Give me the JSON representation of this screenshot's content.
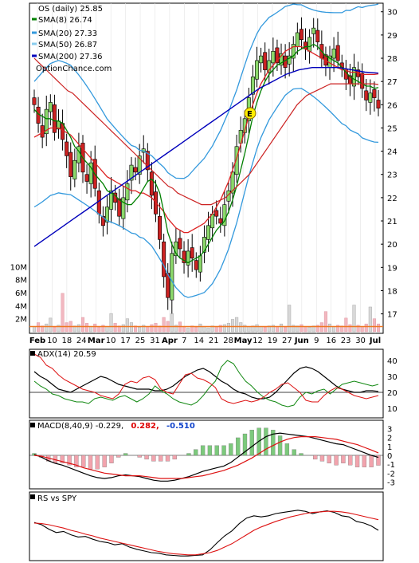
{
  "title": "OS (daily) 25.85",
  "watermark": "OptionChance.com",
  "legend": [
    {
      "label": "SMA(8) 26.74",
      "color": "#008000",
      "style": "ohlc"
    },
    {
      "label": "SMA(20) 27.33",
      "color": "#3399dd"
    },
    {
      "label": "SMA(50) 26.87",
      "color": "#88ccee"
    },
    {
      "label": "SMA(200) 27.36",
      "color": "#0000bb"
    }
  ],
  "price_axis": [
    "30",
    "29",
    "28",
    "27",
    "26",
    "25",
    "24",
    "23",
    "22",
    "21",
    "20",
    "19",
    "18",
    "17"
  ],
  "volume_axis": [
    "10M",
    "8M",
    "6M",
    "4M",
    "2M"
  ],
  "x_ticks": [
    "Feb",
    "10",
    "18",
    "24",
    "Mar",
    "10",
    "17",
    "25",
    "31",
    "Apr",
    "7",
    "14",
    "21",
    "28",
    "May",
    "12",
    "19",
    "27",
    "Jun",
    "9",
    "16",
    "23",
    "30",
    "Jul"
  ],
  "x_ticks_bold": [
    "Feb",
    "Mar",
    "Apr",
    "May",
    "Jun",
    "Jul"
  ],
  "earnings_marker": "E",
  "adx": {
    "label": "ADX(14) 20.59",
    "axis": [
      "40",
      "30",
      "20",
      "10"
    ]
  },
  "macd": {
    "label": "MACD(8,40,9) -0.229,",
    "value1": "0.282,",
    "value2": "-0.510",
    "axis": [
      "3",
      "2",
      "1",
      "0",
      "-1",
      "-2",
      "-3"
    ]
  },
  "rs": {
    "label": "RS vs SPY"
  },
  "chart_data": [
    {
      "type": "candlestick",
      "title": "OS (daily) 25.85",
      "series": [
        {
          "name": "SMA(8) 26.74"
        },
        {
          "name": "SMA(20) 27.33"
        },
        {
          "name": "SMA(50) 26.87"
        },
        {
          "name": "SMA(200) 27.36"
        }
      ],
      "ylim": [
        16.3,
        30.3
      ],
      "close": [
        26.0,
        25.2,
        24.6,
        25.8,
        26.1,
        24.8,
        25.3,
        24.5,
        23.8,
        22.9,
        23.6,
        24.2,
        23.1,
        22.7,
        23.5,
        22.4,
        21.3,
        20.8,
        21.6,
        22.3,
        21.8,
        21.2,
        22.0,
        22.6,
        23.4,
        23.1,
        23.8,
        24.1,
        23.2,
        22.1,
        21.3,
        20.2,
        18.6,
        17.7,
        19.6,
        20.1,
        19.8,
        19.2,
        19.7,
        19.4,
        18.9,
        19.5,
        20.3,
        20.8,
        21.3,
        21.2,
        20.9,
        21.7,
        22.3,
        23.1,
        24.2,
        24.9,
        25.4,
        26.3,
        27.2,
        27.9,
        28.1,
        27.5,
        27.9,
        28.3,
        27.8,
        28.2,
        27.6,
        28.1,
        28.6,
        29.1,
        28.8,
        28.4,
        28.9,
        29.3,
        28.7,
        28.0,
        27.7,
        28.1,
        28.4,
        27.9,
        27.6,
        27.1,
        26.9,
        27.6,
        27.2,
        26.7,
        26.2,
        26.5,
        26.3,
        25.85
      ],
      "sma8": [
        25.8,
        25.6,
        25.5,
        25.4,
        25.4,
        25.3,
        25.3,
        25.2,
        24.9,
        24.6,
        24.2,
        24.0,
        23.7,
        23.5,
        23.3,
        23.0,
        22.8,
        22.6,
        22.3,
        22.2,
        22.1,
        21.9,
        21.8,
        21.7,
        21.7,
        21.9,
        22.1,
        22.4,
        22.7,
        22.8,
        22.6,
        22.2,
        21.4,
        20.5,
        20.0,
        19.6,
        19.4,
        19.3,
        19.2,
        19.3,
        19.4,
        19.5,
        19.7,
        20.0,
        20.3,
        20.6,
        20.8,
        21.0,
        21.4,
        21.9,
        22.5,
        23.2,
        23.9,
        24.7,
        25.5,
        26.1,
        26.6,
        27.0,
        27.3,
        27.5,
        27.7,
        27.8,
        27.9,
        28.0,
        28.1,
        28.3,
        28.4,
        28.5,
        28.5,
        28.6,
        28.5,
        28.3,
        28.1,
        28.0,
        27.9,
        27.8,
        27.6,
        27.4,
        27.2,
        27.1,
        27.0,
        26.9,
        26.8,
        26.8,
        26.7,
        26.74
      ],
      "sma20": [
        24.6,
        24.7,
        24.8,
        24.9,
        25.0,
        25.0,
        25.0,
        24.9,
        24.8,
        24.7,
        24.5,
        24.3,
        24.1,
        23.9,
        23.7,
        23.5,
        23.3,
        23.1,
        22.9,
        22.8,
        22.7,
        22.6,
        22.5,
        22.4,
        22.3,
        22.3,
        22.2,
        22.2,
        22.1,
        22.0,
        21.8,
        21.6,
        21.4,
        21.1,
        20.9,
        20.7,
        20.6,
        20.5,
        20.5,
        20.6,
        20.7,
        20.8,
        20.9,
        21.1,
        21.3,
        21.6,
        21.9,
        22.3,
        22.7,
        23.2,
        23.7,
        24.3,
        24.9,
        25.5,
        26.0,
        26.5,
        26.9,
        27.2,
        27.5,
        27.7,
        27.9,
        28.1,
        28.3,
        28.4,
        28.5,
        28.5,
        28.5,
        28.4,
        28.3,
        28.2,
        28.1,
        28.0,
        27.9,
        27.8,
        27.7,
        27.6,
        27.5,
        27.5,
        27.4,
        27.4,
        27.4,
        27.3,
        27.3,
        27.3,
        27.3,
        27.33
      ],
      "sma50": [
        28.0,
        27.8,
        27.6,
        27.4,
        27.2,
        27.0,
        26.8,
        26.6,
        26.5,
        26.3,
        26.1,
        25.9,
        25.7,
        25.5,
        25.3,
        25.1,
        24.9,
        24.7,
        24.5,
        24.3,
        24.1,
        23.9,
        23.7,
        23.5,
        23.3,
        23.1,
        22.9,
        22.7,
        22.5,
        22.4,
        22.2,
        22.1,
        22.0,
        21.9,
        21.8,
        21.7,
        21.7,
        21.7,
        21.8,
        21.9,
        22.0,
        22.2,
        22.4,
        22.6,
        22.8,
        23.0,
        23.3,
        23.6,
        23.9,
        24.2,
        24.5,
        24.8,
        25.1,
        25.4,
        25.7,
        26.0,
        26.2,
        26.4,
        26.5,
        26.6,
        26.7,
        26.8,
        26.9,
        26.9,
        26.9,
        26.9,
        26.9,
        26.9,
        26.9,
        26.9,
        26.9,
        26.9,
        26.87
      ],
      "sma200": [
        19.9,
        20.3,
        20.7,
        21.1,
        21.5,
        21.9,
        22.3,
        22.7,
        23.1,
        23.5,
        23.9,
        24.3,
        24.7,
        25.1,
        25.5,
        25.9,
        26.3,
        26.7,
        27.0,
        27.3,
        27.5,
        27.6,
        27.6,
        27.6,
        27.5,
        27.4,
        27.36
      ],
      "volume_M": [
        0.8,
        1.4,
        0.9,
        1.2,
        2.1,
        0.7,
        1.0,
        5.9,
        1.4,
        1.6,
        0.9,
        1.1,
        2.2,
        1.3,
        0.8,
        1.2,
        0.7,
        1.0,
        0.8,
        2.8,
        1.3,
        0.9,
        1.1,
        2.0,
        1.4,
        0.9,
        0.7,
        1.0,
        0.8,
        1.1,
        1.3,
        0.9,
        2.2,
        1.6,
        2.8,
        1.0,
        1.5,
        0.8,
        0.6,
        0.9,
        0.7,
        1.2,
        0.8,
        0.6,
        0.9,
        0.8,
        1.0,
        1.1,
        1.3,
        1.9,
        2.2,
        1.4,
        1.0,
        0.8,
        0.9,
        1.1,
        0.8,
        0.7,
        0.9,
        1.0,
        0.8,
        1.2,
        0.7,
        4.1,
        1.0,
        0.9,
        1.1,
        0.8,
        0.7,
        0.9,
        1.0,
        1.4,
        3.1,
        1.2,
        0.8,
        1.0,
        0.9,
        2.1,
        1.1,
        4.1,
        1.0,
        0.8,
        1.2,
        3.8,
        2.0,
        1.2
      ],
      "volume_sma_M": 0.8,
      "volume_ylim": [
        0,
        12
      ]
    },
    {
      "type": "line",
      "title": "ADX(14) 20.59",
      "ylim": [
        5,
        45
      ],
      "adx": [
        33,
        30,
        28,
        25,
        22,
        21,
        20,
        22,
        24,
        26,
        28,
        30,
        29,
        27,
        25,
        24,
        23,
        22,
        22,
        22,
        21,
        21,
        22,
        24,
        27,
        30,
        32,
        34,
        35,
        33,
        30,
        27,
        25,
        22,
        20,
        19,
        17,
        16,
        16,
        17,
        20,
        24,
        28,
        32,
        35,
        36,
        35,
        33,
        30,
        27,
        24,
        22,
        21,
        20,
        20,
        21,
        21,
        20.59
      ],
      "di_plus": [
        27,
        24,
        22,
        19,
        18,
        16,
        15,
        14,
        14,
        13,
        16,
        17,
        16,
        15,
        17,
        18,
        16,
        14,
        16,
        19,
        24,
        21,
        19,
        16,
        14,
        13,
        12,
        14,
        18,
        23,
        27,
        36,
        40,
        38,
        32,
        27,
        24,
        20,
        17,
        15,
        14,
        12,
        11,
        12,
        17,
        20,
        19,
        21,
        22,
        19,
        22,
        25,
        26,
        27,
        26,
        25,
        24,
        25
      ],
      "di_minus": [
        44,
        42,
        37,
        35,
        31,
        28,
        26,
        24,
        22,
        21,
        20,
        18,
        17,
        16,
        19,
        25,
        27,
        26,
        29,
        30,
        28,
        22,
        20,
        19,
        25,
        31,
        32,
        29,
        28,
        26,
        23,
        16,
        14,
        13,
        14,
        15,
        14,
        15,
        17,
        20,
        22,
        25,
        26,
        23,
        20,
        15,
        14,
        14,
        18,
        21,
        23,
        22,
        20,
        18,
        17,
        16,
        17,
        18
      ]
    },
    {
      "type": "line",
      "title": "MACD(8,40,9) -0.229, 0.282, -0.510",
      "ylim": [
        -3.5,
        3.5
      ],
      "macd": [
        0.1,
        -0.2,
        -0.6,
        -0.9,
        -1.1,
        -1.4,
        -1.7,
        -2.0,
        -2.3,
        -2.5,
        -2.6,
        -2.5,
        -2.3,
        -2.2,
        -2.3,
        -2.4,
        -2.6,
        -2.8,
        -2.9,
        -2.9,
        -2.8,
        -2.6,
        -2.4,
        -2.1,
        -1.8,
        -1.6,
        -1.4,
        -1.2,
        -0.8,
        -0.2,
        0.4,
        1.0,
        1.6,
        2.1,
        2.4,
        2.5,
        2.4,
        2.3,
        2.2,
        2.1,
        1.9,
        1.7,
        1.5,
        1.3,
        1.2,
        0.9,
        0.6,
        0.3,
        0.0,
        -0.229
      ],
      "signal": [
        0.0,
        -0.1,
        -0.3,
        -0.5,
        -0.7,
        -0.9,
        -1.1,
        -1.4,
        -1.6,
        -1.8,
        -2.0,
        -2.1,
        -2.2,
        -2.3,
        -2.3,
        -2.3,
        -2.4,
        -2.5,
        -2.6,
        -2.6,
        -2.6,
        -2.6,
        -2.5,
        -2.4,
        -2.3,
        -2.1,
        -1.9,
        -1.7,
        -1.4,
        -1.1,
        -0.7,
        -0.3,
        0.2,
        0.7,
        1.1,
        1.5,
        1.8,
        2.0,
        2.1,
        2.1,
        2.1,
        2.0,
        1.9,
        1.8,
        1.6,
        1.4,
        1.2,
        0.9,
        0.6,
        0.282
      ]
    },
    {
      "type": "line",
      "title": "RS vs SPY",
      "ylim": [
        0,
        10
      ],
      "rs": [
        6.4,
        6.0,
        5.2,
        4.6,
        4.8,
        4.2,
        3.8,
        3.9,
        3.4,
        3.0,
        2.8,
        2.4,
        2.6,
        2.0,
        1.6,
        1.3,
        1.0,
        0.9,
        0.6,
        0.5,
        0.4,
        0.4,
        0.5,
        0.6,
        1.5,
        2.8,
        4.0,
        4.9,
        6.2,
        7.2,
        7.6,
        7.4,
        7.6,
        8.0,
        8.2,
        8.4,
        8.6,
        8.4,
        8.0,
        8.3,
        8.5,
        8.2,
        7.6,
        7.4,
        6.6,
        6.3,
        5.8,
        5.0
      ],
      "rs_sma": [
        6.3,
        6.2,
        6.0,
        5.7,
        5.4,
        5.0,
        4.7,
        4.3,
        4.0,
        3.6,
        3.3,
        3.0,
        2.7,
        2.4,
        2.1,
        1.8,
        1.5,
        1.2,
        1.0,
        0.8,
        0.7,
        0.6,
        0.6,
        0.8,
        1.0,
        1.4,
        2.0,
        2.6,
        3.4,
        4.2,
        5.0,
        5.6,
        6.1,
        6.6,
        7.0,
        7.4,
        7.7,
        8.0,
        8.2,
        8.3,
        8.4,
        8.4,
        8.3,
        8.1,
        7.8,
        7.5,
        7.2,
        6.9
      ]
    }
  ]
}
